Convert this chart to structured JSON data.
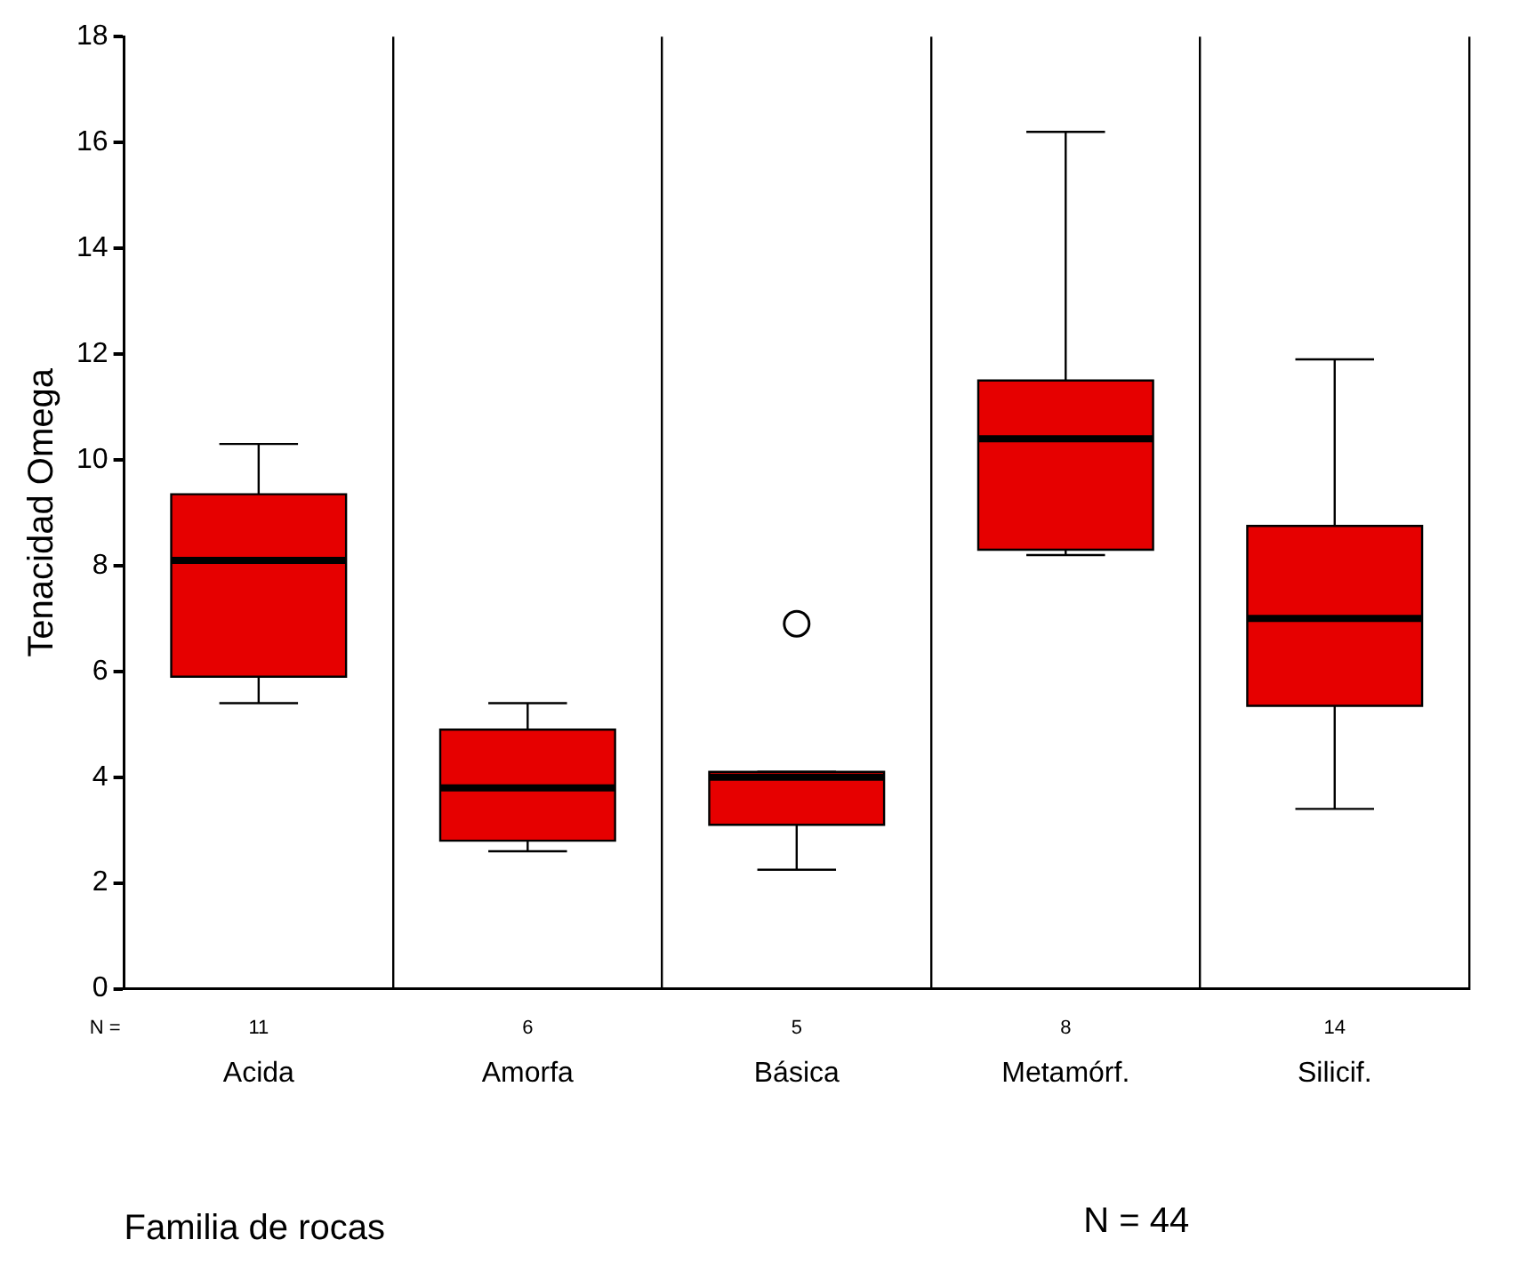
{
  "chart_data": {
    "type": "box",
    "xlabel": "Familia de rocas",
    "ylabel": "Tenacidad Omega",
    "categories": [
      "Acida",
      "Amorfa",
      "Básica",
      "Metamórf.",
      "Silicif."
    ],
    "boxes": [
      {
        "low": 5.4,
        "q1": 5.9,
        "median": 8.1,
        "q3": 9.35,
        "high": 10.3
      },
      {
        "low": 2.6,
        "q1": 2.8,
        "median": 3.8,
        "q3": 4.9,
        "high": 5.4
      },
      {
        "low": 2.25,
        "q1": 3.1,
        "median": 4.0,
        "q3": 4.1,
        "high": 4.1,
        "outliers": [
          6.9
        ]
      },
      {
        "low": 8.2,
        "q1": 8.3,
        "median": 10.4,
        "q3": 11.5,
        "high": 16.2
      },
      {
        "low": 3.4,
        "q1": 5.35,
        "median": 7.0,
        "q3": 8.75,
        "high": 11.9
      }
    ],
    "color": "#e60000",
    "ylim": [
      0,
      18
    ],
    "yticks": [
      0,
      2,
      4,
      6,
      8,
      10,
      12,
      14,
      16,
      18
    ],
    "grid": "x",
    "legend": false,
    "annotations": [
      "N =",
      "11",
      "6",
      "5",
      "8",
      "14",
      "N = 44"
    ]
  }
}
